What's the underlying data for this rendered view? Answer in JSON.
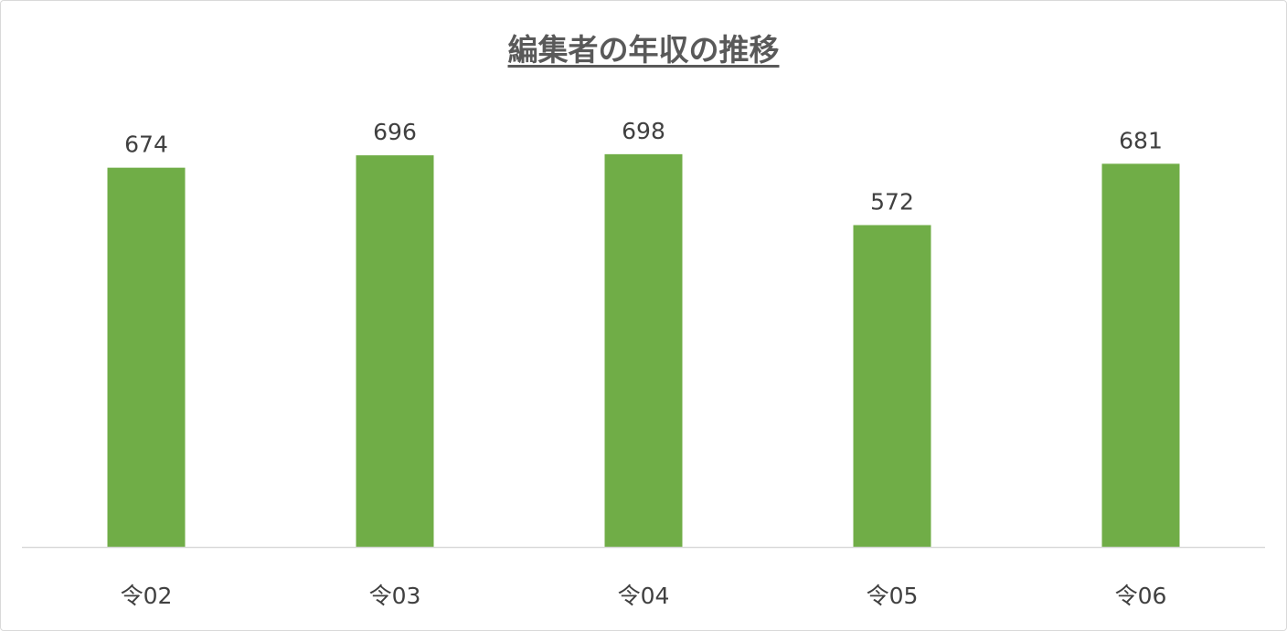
{
  "chart_data": {
    "type": "bar",
    "title": "編集者の年収の推移",
    "categories": [
      "令02",
      "令03",
      "令04",
      "令05",
      "令06"
    ],
    "values": [
      674,
      696,
      698,
      572,
      681
    ],
    "xlabel": "",
    "ylabel": "",
    "ylim": [
      0,
      800
    ],
    "grid": false,
    "legend": "none",
    "data_labels": true,
    "colors": {
      "bar": "#70ad47",
      "text": "#404040",
      "title": "#595959",
      "axis": "#d9d9d9"
    }
  }
}
